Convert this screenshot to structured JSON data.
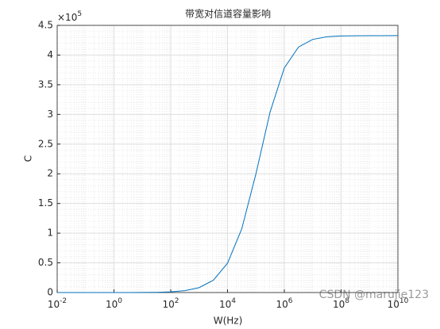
{
  "chart_data": {
    "type": "line",
    "title": "带宽对信道容量影响",
    "xlabel": "W(Hz)",
    "ylabel": "C",
    "y_multiplier": "×10",
    "y_multiplier_exponent": 5,
    "watermark": "CSDN @marujie123",
    "xscale": "log",
    "grid": true,
    "minor_grid": true,
    "xlim": [
      0.01,
      10000000000
    ],
    "ylim": [
      0,
      4.5
    ],
    "xticks": [
      {
        "value": 0.01,
        "label": "10",
        "exponent": -2
      },
      {
        "value": 1,
        "label": "10",
        "exponent": 0
      },
      {
        "value": 100,
        "label": "10",
        "exponent": 2
      },
      {
        "value": 10000,
        "label": "10",
        "exponent": 4
      },
      {
        "value": 1000000,
        "label": "10",
        "exponent": 6
      },
      {
        "value": 100000000,
        "label": "10",
        "exponent": 8
      },
      {
        "value": 10000000000,
        "label": "10",
        "exponent": 10
      }
    ],
    "yticks": [
      0,
      0.5,
      1,
      1.5,
      2,
      2.5,
      3,
      3.5,
      4,
      4.5
    ],
    "x": [
      0.01,
      0.0316,
      0.1,
      0.316,
      1,
      3.16,
      10,
      31.6,
      100,
      316,
      1000,
      3162,
      10000,
      31623,
      100000,
      316228,
      1000000,
      3162278,
      10000000,
      31622777,
      100000000,
      316227766,
      1000000000,
      3162277660,
      10000000000
    ],
    "series": [
      {
        "color": "#0072bd",
        "values": [
          2.5e-06,
          7.3e-06,
          2e-05,
          6e-05,
          0.00018,
          0.0005,
          0.0015,
          0.0042,
          0.0116,
          0.0313,
          0.0823,
          0.208,
          0.495,
          1.072,
          2.0,
          3.044,
          3.785,
          4.135,
          4.264,
          4.308,
          4.322,
          4.325,
          4.326,
          4.327,
          4.328
        ]
      }
    ]
  }
}
